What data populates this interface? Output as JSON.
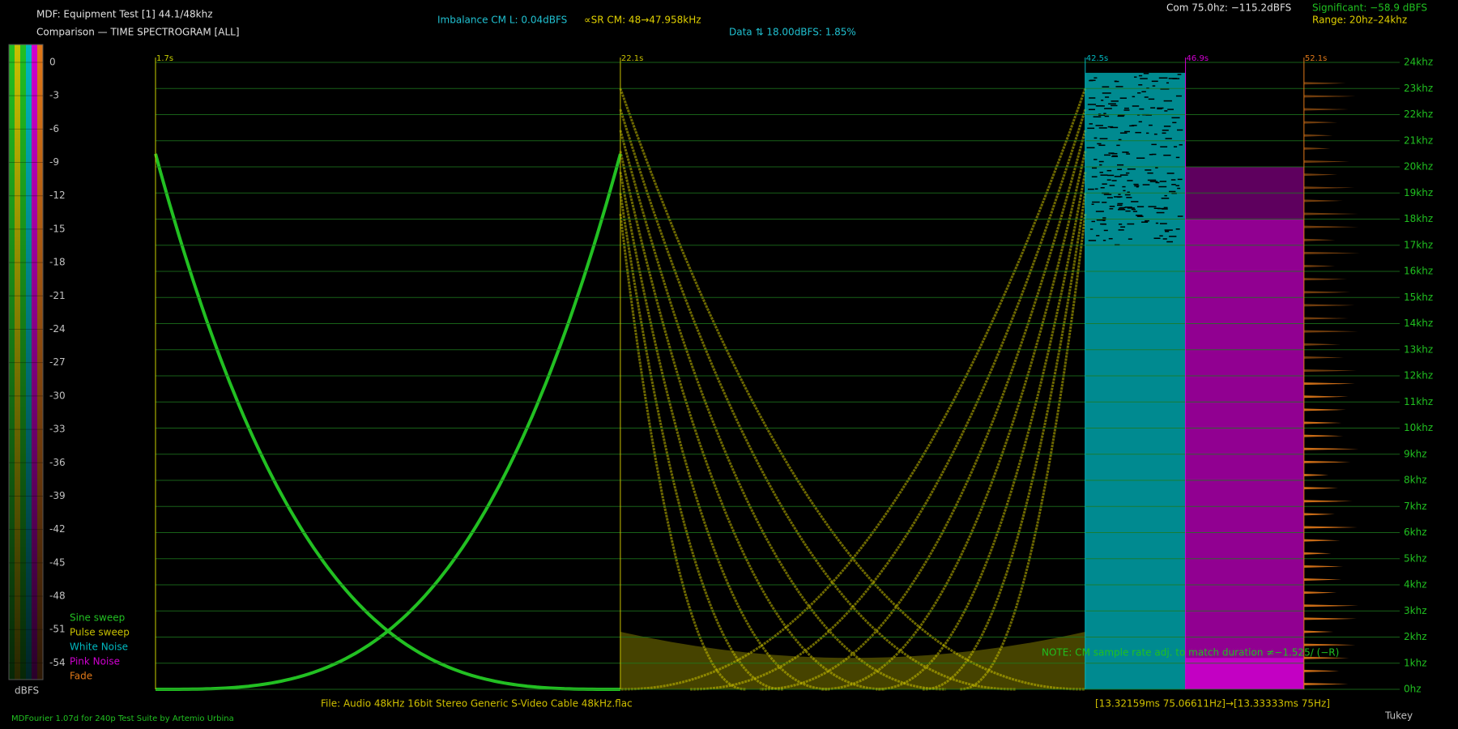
{
  "chart_data": {
    "type": "spectrogram",
    "title": "MDF: Equipment Test [1] 44.1/48khz",
    "subtitle": "Comparison — TIME SPECTROGRAM [ALL]",
    "imbalance": "Imbalance CM L: 0.04dBFS",
    "sample_rate": "∝SR CM: 48→47.958kHz",
    "data_note": "Data ⇅ 18.00dBFS: 1.85%",
    "com": "Com 75.0hz: −115.2dBFS",
    "significant": "Significant: −58.9 dBFS",
    "range": "Range: 20hz–24khz",
    "note": "NOTE: CM sample rate adj. to match duration ≠−1.525∕ (−R)",
    "file": "File: Audio   48kHz 16bit Stereo Generic S-Video Cable 48kHz.flac",
    "frame": "[13.32159ms 75.06611Hz]→[13.33333ms 75Hz]",
    "footer": "MDFourier 1.07d for 240p Test Suite by Artemio Urbina",
    "window": "Tukey",
    "series": [
      {
        "name": "Sine sweep",
        "color": "#22c022"
      },
      {
        "name": "Pulse sweep",
        "color": "#c8c000"
      },
      {
        "name": "White Noise",
        "color": "#00b8c0"
      },
      {
        "name": "Pink Noise",
        "color": "#d000d0"
      },
      {
        "name": "Fade",
        "color": "#e07818"
      }
    ],
    "xlim": [
      1.7,
      56.3
    ],
    "xticks": [
      {
        "value": 1.7,
        "label": "1.7s"
      },
      {
        "value": 22.1,
        "label": "22.1s"
      },
      {
        "value": 42.5,
        "label": "42.5s"
      },
      {
        "value": 46.9,
        "label": "46.9s"
      },
      {
        "value": 52.1,
        "label": "52.1s"
      }
    ],
    "ylim": [
      0,
      24
    ],
    "yticks": [
      {
        "value": 0,
        "label": "0hz"
      },
      {
        "value": 1,
        "label": "1khz"
      },
      {
        "value": 2,
        "label": "2khz"
      },
      {
        "value": 3,
        "label": "3khz"
      },
      {
        "value": 4,
        "label": "4khz"
      },
      {
        "value": 5,
        "label": "5khz"
      },
      {
        "value": 6,
        "label": "6khz"
      },
      {
        "value": 7,
        "label": "7khz"
      },
      {
        "value": 8,
        "label": "8khz"
      },
      {
        "value": 9,
        "label": "9khz"
      },
      {
        "value": 10,
        "label": "10khz"
      },
      {
        "value": 11,
        "label": "11khz"
      },
      {
        "value": 12,
        "label": "12khz"
      },
      {
        "value": 13,
        "label": "13khz"
      },
      {
        "value": 14,
        "label": "14khz"
      },
      {
        "value": 15,
        "label": "15khz"
      },
      {
        "value": 16,
        "label": "16khz"
      },
      {
        "value": 17,
        "label": "17khz"
      },
      {
        "value": 18,
        "label": "18khz"
      },
      {
        "value": 19,
        "label": "19khz"
      },
      {
        "value": 20,
        "label": "20khz"
      },
      {
        "value": 21,
        "label": "21khz"
      },
      {
        "value": 22,
        "label": "22khz"
      },
      {
        "value": 23,
        "label": "23khz"
      },
      {
        "value": 24,
        "label": "24khz"
      }
    ],
    "grid": true,
    "colorbar": {
      "label": "dBFS",
      "lim": [
        1.6,
        -55.5
      ],
      "ticks": [
        0,
        -3,
        -6,
        -9,
        -12,
        -15,
        -18,
        -21,
        -24,
        -27,
        -30,
        -33,
        -36,
        -39,
        -42,
        -45,
        -48,
        -51,
        -54
      ]
    }
  }
}
